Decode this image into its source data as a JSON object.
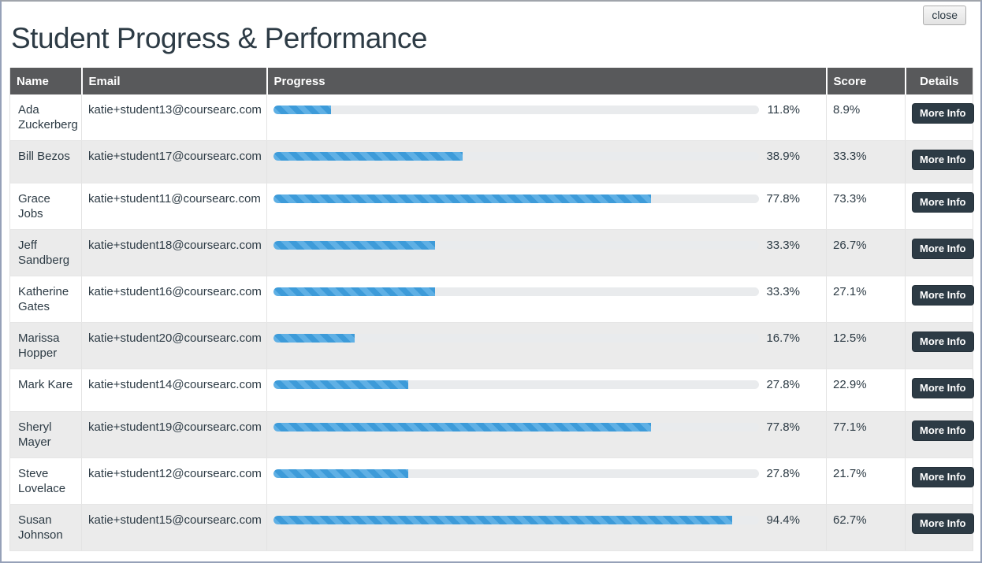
{
  "page": {
    "title": "Student Progress & Performance",
    "close_label": "close"
  },
  "colors": {
    "accent_blue": "#3d9bd9",
    "accent_blue_stripe": "#5fb0e5",
    "header_gray": "#58595b",
    "navy_button": "#2d3b45",
    "row_stripe": "#ebebeb",
    "track_gray": "#e9ebed"
  },
  "table": {
    "headers": [
      "Name",
      "Email",
      "Progress",
      "Score",
      "Details"
    ],
    "more_info_label": "More Info",
    "rows": [
      {
        "name": "Ada Zuckerberg",
        "email": "katie+student13@coursearc.com",
        "progress": "11.8%",
        "score": "8.9%"
      },
      {
        "name": "Bill Bezos",
        "email": "katie+student17@coursearc.com",
        "progress": "38.9%",
        "score": "33.3%"
      },
      {
        "name": "Grace Jobs",
        "email": "katie+student11@coursearc.com",
        "progress": "77.8%",
        "score": "73.3%"
      },
      {
        "name": "Jeff Sandberg",
        "email": "katie+student18@coursearc.com",
        "progress": "33.3%",
        "score": "26.7%"
      },
      {
        "name": "Katherine Gates",
        "email": "katie+student16@coursearc.com",
        "progress": "33.3%",
        "score": "27.1%"
      },
      {
        "name": "Marissa Hopper",
        "email": "katie+student20@coursearc.com",
        "progress": "16.7%",
        "score": "12.5%"
      },
      {
        "name": "Mark Kare",
        "email": "katie+student14@coursearc.com",
        "progress": "27.8%",
        "score": "22.9%"
      },
      {
        "name": "Sheryl Mayer",
        "email": "katie+student19@coursearc.com",
        "progress": "77.8%",
        "score": "77.1%"
      },
      {
        "name": "Steve Lovelace",
        "email": "katie+student12@coursearc.com",
        "progress": "27.8%",
        "score": "21.7%"
      },
      {
        "name": "Susan Johnson",
        "email": "katie+student15@coursearc.com",
        "progress": "94.4%",
        "score": "62.7%"
      }
    ]
  }
}
